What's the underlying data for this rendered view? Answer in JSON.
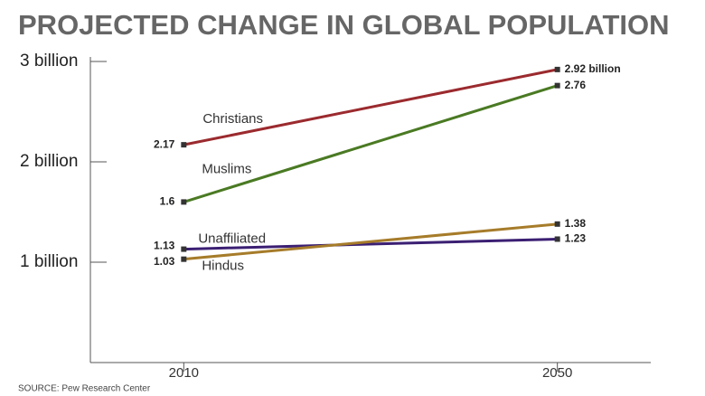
{
  "chart_data": {
    "type": "line",
    "title": "PROJECTED CHANGE IN GLOBAL POPULATION",
    "source": "SOURCE: Pew Research Center",
    "x": [
      2010,
      2050
    ],
    "xlim": [
      2000,
      2060
    ],
    "xticks": [
      2010,
      2050
    ],
    "ylim": [
      0,
      3
    ],
    "yticks": [
      {
        "value": 1,
        "label": "1 billion"
      },
      {
        "value": 2,
        "label": "2 billion"
      },
      {
        "value": 3,
        "label": "3 billion"
      }
    ],
    "series": [
      {
        "name": "Christians",
        "color": "#9b2a2e",
        "values": [
          2.17,
          2.92
        ],
        "value_labels": [
          "2.17",
          "2.92 billion"
        ]
      },
      {
        "name": "Muslims",
        "color": "#4a7a23",
        "values": [
          1.6,
          2.76
        ]
      },
      {
        "name": "Unaffiliated",
        "color": "#3b1f73",
        "values": [
          1.13,
          1.23
        ]
      },
      {
        "name": "Hindus",
        "color": "#a67c2a",
        "values": [
          1.03,
          1.38
        ]
      }
    ]
  }
}
